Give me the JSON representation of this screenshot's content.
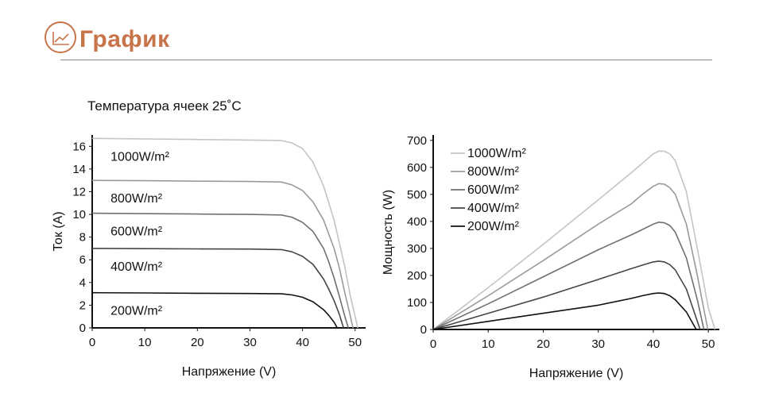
{
  "header": {
    "title": "График"
  },
  "subtitle": "Температура ячеек 25˚C",
  "chart_data": [
    {
      "type": "line",
      "title": "",
      "xlabel": "Напряжение (V)",
      "ylabel": "Ток (А)",
      "xlim": [
        0,
        52
      ],
      "ylim": [
        0,
        17
      ],
      "xticks": [
        0,
        10,
        20,
        30,
        40,
        50
      ],
      "yticks": [
        0,
        2,
        4,
        6,
        8,
        10,
        12,
        14,
        16
      ],
      "grid": false,
      "legend_placement": "inline-left",
      "series": [
        {
          "name": "1000W/m²",
          "color": "#c4c4c4",
          "x": [
            0,
            10,
            20,
            30,
            36,
            38,
            40,
            42,
            44,
            46,
            48,
            49,
            50,
            50.5
          ],
          "y": [
            16.7,
            16.65,
            16.6,
            16.55,
            16.5,
            16.3,
            15.8,
            14.6,
            12.5,
            9.5,
            5.5,
            3.0,
            1.0,
            0
          ]
        },
        {
          "name": "800W/m²",
          "color": "#9a9a9a",
          "x": [
            0,
            10,
            20,
            30,
            36,
            38,
            40,
            42,
            44,
            46,
            47,
            48,
            49,
            49.6
          ],
          "y": [
            13.0,
            12.97,
            12.93,
            12.9,
            12.85,
            12.6,
            12.1,
            11.1,
            9.5,
            7.0,
            5.3,
            3.2,
            1.2,
            0
          ]
        },
        {
          "name": "600W/m²",
          "color": "#707070",
          "x": [
            0,
            10,
            20,
            30,
            36,
            38,
            40,
            42,
            44,
            45,
            46,
            47,
            48,
            48.7
          ],
          "y": [
            10.1,
            10.07,
            10.03,
            10.0,
            9.95,
            9.75,
            9.3,
            8.5,
            7.0,
            5.8,
            4.4,
            2.8,
            1.1,
            0
          ]
        },
        {
          "name": "400W/m²",
          "color": "#454545",
          "x": [
            0,
            10,
            20,
            30,
            36,
            38,
            40,
            42,
            44,
            45,
            46,
            47,
            47.8
          ],
          "y": [
            7.0,
            6.98,
            6.96,
            6.95,
            6.9,
            6.7,
            6.3,
            5.6,
            4.3,
            3.4,
            2.4,
            1.2,
            0
          ]
        },
        {
          "name": "200W/m²",
          "color": "#111111",
          "x": [
            0,
            10,
            20,
            30,
            36,
            38,
            40,
            42,
            44,
            45,
            46,
            46.6
          ],
          "y": [
            3.1,
            3.08,
            3.05,
            3.03,
            3.0,
            2.9,
            2.7,
            2.3,
            1.6,
            1.1,
            0.5,
            0
          ]
        }
      ]
    },
    {
      "type": "line",
      "title": "",
      "xlabel": "Напряжение (V)",
      "ylabel": "Мощность (W)",
      "xlim": [
        0,
        52
      ],
      "ylim": [
        0,
        720
      ],
      "xticks": [
        0,
        10,
        20,
        30,
        40,
        50
      ],
      "yticks": [
        0,
        100,
        200,
        300,
        400,
        500,
        600,
        700
      ],
      "grid": false,
      "legend_placement": "top-left",
      "series": [
        {
          "name": "1000W/m²",
          "color": "#c4c4c4",
          "x": [
            0,
            10,
            20,
            30,
            36,
            38,
            40,
            41,
            42,
            43,
            44,
            46,
            48,
            50,
            51.2
          ],
          "y": [
            0,
            155,
            315,
            480,
            580,
            615,
            650,
            660,
            660,
            650,
            625,
            510,
            300,
            80,
            0
          ]
        },
        {
          "name": "800W/m²",
          "color": "#9a9a9a",
          "x": [
            0,
            10,
            20,
            30,
            36,
            38,
            40,
            41,
            42,
            43,
            44,
            46,
            48,
            49,
            49.9
          ],
          "y": [
            0,
            125,
            255,
            390,
            465,
            500,
            530,
            540,
            538,
            525,
            500,
            390,
            200,
            95,
            0
          ]
        },
        {
          "name": "600W/m²",
          "color": "#707070",
          "x": [
            0,
            10,
            20,
            30,
            36,
            38,
            40,
            41,
            42,
            43,
            44,
            46,
            48,
            49.2
          ],
          "y": [
            0,
            95,
            195,
            295,
            350,
            370,
            390,
            397,
            395,
            385,
            360,
            265,
            110,
            0
          ]
        },
        {
          "name": "400W/m²",
          "color": "#454545",
          "x": [
            0,
            10,
            20,
            30,
            36,
            38,
            40,
            41,
            42,
            43,
            44,
            46,
            48.5
          ],
          "y": [
            0,
            60,
            120,
            185,
            225,
            238,
            250,
            253,
            250,
            240,
            220,
            150,
            0
          ]
        },
        {
          "name": "200W/m²",
          "color": "#111111",
          "x": [
            0,
            10,
            20,
            30,
            36,
            38,
            40,
            41,
            42,
            43,
            44,
            46,
            47.8
          ],
          "y": [
            0,
            30,
            60,
            90,
            115,
            125,
            133,
            135,
            133,
            125,
            110,
            65,
            0
          ]
        }
      ]
    }
  ]
}
